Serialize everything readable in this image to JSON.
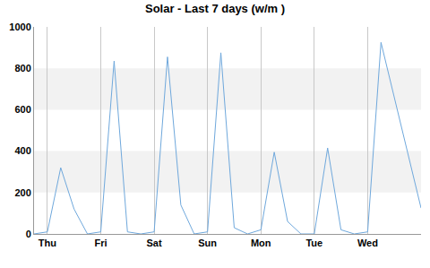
{
  "chart_data": {
    "type": "line",
    "title": "Solar - Last 7 days (w/m )",
    "x": [
      -6,
      0,
      6,
      12,
      18,
      24,
      30,
      36,
      42,
      48,
      54,
      60,
      66,
      72,
      78,
      84,
      90,
      96,
      102,
      108,
      114,
      120,
      126,
      132,
      138,
      144,
      150,
      168
    ],
    "values": [
      0,
      10,
      320,
      120,
      0,
      10,
      835,
      10,
      0,
      10,
      855,
      140,
      0,
      10,
      875,
      30,
      0,
      20,
      395,
      60,
      0,
      0,
      415,
      20,
      0,
      10,
      925,
      125
    ],
    "color": "#6fa8dc",
    "xlim": [
      -6,
      168
    ],
    "xticks": [
      {
        "value": 0,
        "label": "Thu"
      },
      {
        "value": 24,
        "label": "Fri"
      },
      {
        "value": 48,
        "label": "Sat"
      },
      {
        "value": 72,
        "label": "Sun"
      },
      {
        "value": 96,
        "label": "Mon"
      },
      {
        "value": 120,
        "label": "Tue"
      },
      {
        "value": 144,
        "label": "Wed"
      }
    ],
    "ylim": [
      0,
      1000
    ],
    "yticks": [
      0,
      200,
      400,
      600,
      800,
      1000
    ],
    "grid": true
  }
}
